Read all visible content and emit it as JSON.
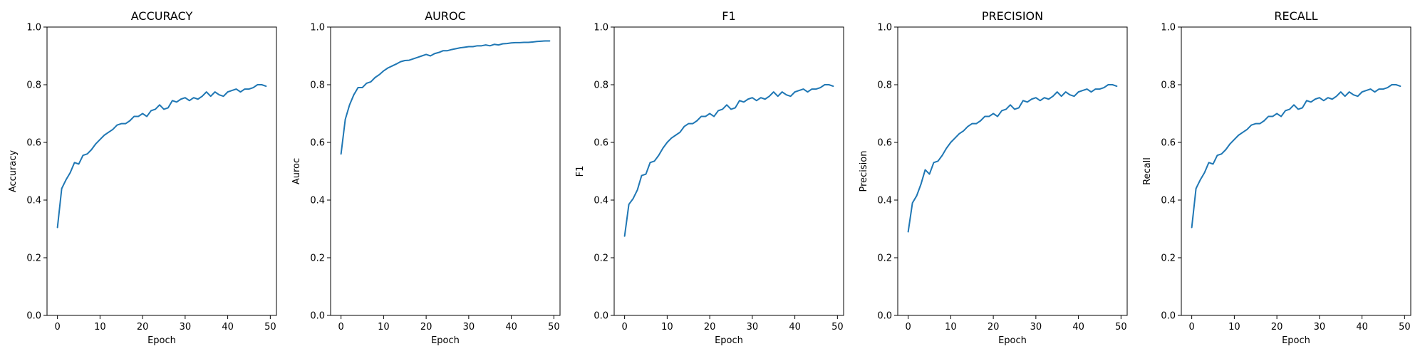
{
  "chart_data": [
    {
      "type": "line",
      "title": "ACCURACY",
      "xlabel": "Epoch",
      "ylabel": "Accuracy",
      "xlim": [
        -2.45,
        51.45
      ],
      "ylim": [
        0.0,
        1.0
      ],
      "xticks": [
        0,
        10,
        20,
        30,
        40,
        50
      ],
      "yticks": [
        0.0,
        0.2,
        0.4,
        0.6,
        0.8,
        1.0
      ],
      "grid": false,
      "line_color": "#1f77b4",
      "series": [
        {
          "x": [
            0,
            1,
            2,
            3,
            4,
            5,
            6,
            7,
            8,
            9,
            10,
            11,
            12,
            13,
            14,
            15,
            16,
            17,
            18,
            19,
            20,
            21,
            22,
            23,
            24,
            25,
            26,
            27,
            28,
            29,
            30,
            31,
            32,
            33,
            34,
            35,
            36,
            37,
            38,
            39,
            40,
            41,
            42,
            43,
            44,
            45,
            46,
            47,
            48,
            49
          ],
          "y": [
            0.305,
            0.44,
            0.47,
            0.495,
            0.53,
            0.525,
            0.555,
            0.56,
            0.575,
            0.595,
            0.61,
            0.625,
            0.635,
            0.645,
            0.66,
            0.665,
            0.665,
            0.675,
            0.69,
            0.69,
            0.7,
            0.69,
            0.71,
            0.715,
            0.73,
            0.715,
            0.72,
            0.745,
            0.74,
            0.75,
            0.755,
            0.745,
            0.755,
            0.75,
            0.76,
            0.775,
            0.76,
            0.775,
            0.765,
            0.76,
            0.775,
            0.78,
            0.785,
            0.775,
            0.785,
            0.785,
            0.79,
            0.8,
            0.8,
            0.795
          ]
        }
      ]
    },
    {
      "type": "line",
      "title": "AUROC",
      "xlabel": "Epoch",
      "ylabel": "Auroc",
      "xlim": [
        -2.45,
        51.45
      ],
      "ylim": [
        0.0,
        1.0
      ],
      "xticks": [
        0,
        10,
        20,
        30,
        40,
        50
      ],
      "yticks": [
        0.0,
        0.2,
        0.4,
        0.6,
        0.8,
        1.0
      ],
      "grid": false,
      "line_color": "#1f77b4",
      "series": [
        {
          "x": [
            0,
            1,
            2,
            3,
            4,
            5,
            6,
            7,
            8,
            9,
            10,
            11,
            12,
            13,
            14,
            15,
            16,
            17,
            18,
            19,
            20,
            21,
            22,
            23,
            24,
            25,
            26,
            27,
            28,
            29,
            30,
            31,
            32,
            33,
            34,
            35,
            36,
            37,
            38,
            39,
            40,
            41,
            42,
            43,
            44,
            45,
            46,
            47,
            48,
            49
          ],
          "y": [
            0.56,
            0.68,
            0.73,
            0.765,
            0.79,
            0.79,
            0.805,
            0.81,
            0.825,
            0.835,
            0.848,
            0.858,
            0.865,
            0.872,
            0.88,
            0.884,
            0.885,
            0.89,
            0.895,
            0.9,
            0.905,
            0.9,
            0.908,
            0.912,
            0.918,
            0.918,
            0.922,
            0.925,
            0.928,
            0.93,
            0.932,
            0.932,
            0.935,
            0.935,
            0.938,
            0.935,
            0.94,
            0.938,
            0.942,
            0.943,
            0.945,
            0.946,
            0.946,
            0.947,
            0.947,
            0.948,
            0.95,
            0.951,
            0.952,
            0.952
          ]
        }
      ]
    },
    {
      "type": "line",
      "title": "F1",
      "xlabel": "Epoch",
      "ylabel": "F1",
      "xlim": [
        -2.45,
        51.45
      ],
      "ylim": [
        0.0,
        1.0
      ],
      "xticks": [
        0,
        10,
        20,
        30,
        40,
        50
      ],
      "yticks": [
        0.0,
        0.2,
        0.4,
        0.6,
        0.8,
        1.0
      ],
      "grid": false,
      "line_color": "#1f77b4",
      "series": [
        {
          "x": [
            0,
            1,
            2,
            3,
            4,
            5,
            6,
            7,
            8,
            9,
            10,
            11,
            12,
            13,
            14,
            15,
            16,
            17,
            18,
            19,
            20,
            21,
            22,
            23,
            24,
            25,
            26,
            27,
            28,
            29,
            30,
            31,
            32,
            33,
            34,
            35,
            36,
            37,
            38,
            39,
            40,
            41,
            42,
            43,
            44,
            45,
            46,
            47,
            48,
            49
          ],
          "y": [
            0.275,
            0.385,
            0.405,
            0.435,
            0.485,
            0.49,
            0.53,
            0.535,
            0.555,
            0.58,
            0.6,
            0.615,
            0.625,
            0.635,
            0.655,
            0.665,
            0.665,
            0.675,
            0.69,
            0.69,
            0.7,
            0.69,
            0.71,
            0.715,
            0.73,
            0.715,
            0.72,
            0.745,
            0.74,
            0.75,
            0.755,
            0.745,
            0.755,
            0.75,
            0.76,
            0.775,
            0.76,
            0.775,
            0.765,
            0.76,
            0.775,
            0.78,
            0.785,
            0.775,
            0.785,
            0.785,
            0.79,
            0.8,
            0.8,
            0.795
          ]
        }
      ]
    },
    {
      "type": "line",
      "title": "PRECISION",
      "xlabel": "Epoch",
      "ylabel": "Precision",
      "xlim": [
        -2.45,
        51.45
      ],
      "ylim": [
        0.0,
        1.0
      ],
      "xticks": [
        0,
        10,
        20,
        30,
        40,
        50
      ],
      "yticks": [
        0.0,
        0.2,
        0.4,
        0.6,
        0.8,
        1.0
      ],
      "grid": false,
      "line_color": "#1f77b4",
      "series": [
        {
          "x": [
            0,
            1,
            2,
            3,
            4,
            5,
            6,
            7,
            8,
            9,
            10,
            11,
            12,
            13,
            14,
            15,
            16,
            17,
            18,
            19,
            20,
            21,
            22,
            23,
            24,
            25,
            26,
            27,
            28,
            29,
            30,
            31,
            32,
            33,
            34,
            35,
            36,
            37,
            38,
            39,
            40,
            41,
            42,
            43,
            44,
            45,
            46,
            47,
            48,
            49
          ],
          "y": [
            0.29,
            0.39,
            0.415,
            0.455,
            0.505,
            0.49,
            0.53,
            0.535,
            0.555,
            0.58,
            0.6,
            0.615,
            0.63,
            0.64,
            0.655,
            0.665,
            0.665,
            0.675,
            0.69,
            0.69,
            0.7,
            0.69,
            0.71,
            0.715,
            0.73,
            0.715,
            0.72,
            0.745,
            0.74,
            0.75,
            0.755,
            0.745,
            0.755,
            0.75,
            0.76,
            0.775,
            0.76,
            0.775,
            0.765,
            0.76,
            0.775,
            0.78,
            0.785,
            0.775,
            0.785,
            0.785,
            0.79,
            0.8,
            0.8,
            0.795
          ]
        }
      ]
    },
    {
      "type": "line",
      "title": "RECALL",
      "xlabel": "Epoch",
      "ylabel": "Recall",
      "xlim": [
        -2.45,
        51.45
      ],
      "ylim": [
        0.0,
        1.0
      ],
      "xticks": [
        0,
        10,
        20,
        30,
        40,
        50
      ],
      "yticks": [
        0.0,
        0.2,
        0.4,
        0.6,
        0.8,
        1.0
      ],
      "grid": false,
      "line_color": "#1f77b4",
      "series": [
        {
          "x": [
            0,
            1,
            2,
            3,
            4,
            5,
            6,
            7,
            8,
            9,
            10,
            11,
            12,
            13,
            14,
            15,
            16,
            17,
            18,
            19,
            20,
            21,
            22,
            23,
            24,
            25,
            26,
            27,
            28,
            29,
            30,
            31,
            32,
            33,
            34,
            35,
            36,
            37,
            38,
            39,
            40,
            41,
            42,
            43,
            44,
            45,
            46,
            47,
            48,
            49
          ],
          "y": [
            0.305,
            0.44,
            0.47,
            0.495,
            0.53,
            0.525,
            0.555,
            0.56,
            0.575,
            0.595,
            0.61,
            0.625,
            0.635,
            0.645,
            0.66,
            0.665,
            0.665,
            0.675,
            0.69,
            0.69,
            0.7,
            0.69,
            0.71,
            0.715,
            0.73,
            0.715,
            0.72,
            0.745,
            0.74,
            0.75,
            0.755,
            0.745,
            0.755,
            0.75,
            0.76,
            0.775,
            0.76,
            0.775,
            0.765,
            0.76,
            0.775,
            0.78,
            0.785,
            0.775,
            0.785,
            0.785,
            0.79,
            0.8,
            0.8,
            0.795
          ]
        }
      ]
    }
  ]
}
